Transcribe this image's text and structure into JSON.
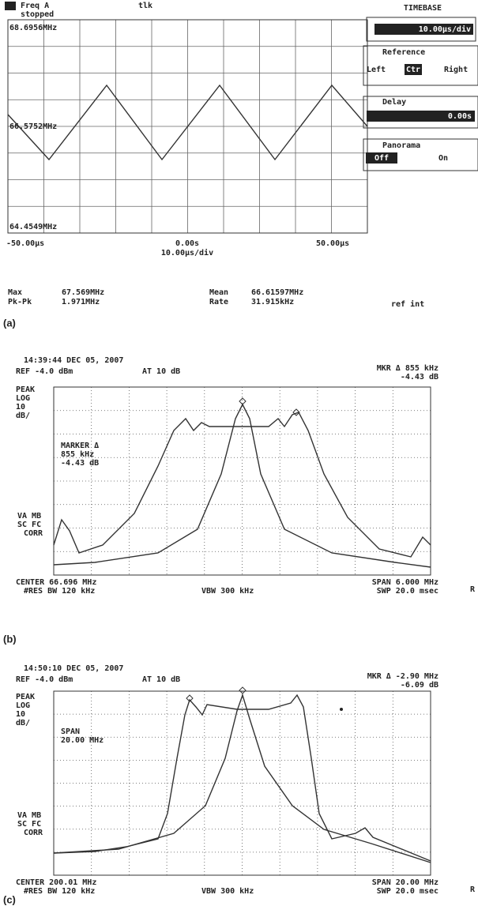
{
  "panel_a": {
    "header": {
      "mode": "Freq A",
      "status": "stopped",
      "tag": "tlk"
    },
    "timebase": {
      "title": "TIMEBASE",
      "value": "10.00µs/div"
    },
    "reference": {
      "title": "Reference",
      "left": "Left",
      "center": "Ctr",
      "right": "Right"
    },
    "delay": {
      "title": "Delay",
      "value": "0.00s"
    },
    "panorama": {
      "title": "Panorama",
      "off": "Off",
      "on": "On"
    },
    "y_labels": [
      "68.6956MHz",
      "66.5752MHz",
      "64.4549MHz"
    ],
    "x_labels": [
      "-50.00µs",
      "0.00s",
      "50.00µs"
    ],
    "x_scale": "10.00µs/div",
    "stats": {
      "max_label": "Max",
      "max": "67.569MHz",
      "pkpk_label": "Pk-Pk",
      "pkpk": "1.971MHz",
      "mean_label": "Mean",
      "mean": "66.61597MHz",
      "rate_label": "Rate",
      "rate": "31.915kHz",
      "ref": "ref int"
    },
    "caption": "(a)"
  },
  "panel_b": {
    "timestamp": "14:39:44 DEC 05, 2007",
    "ref": "REF -4.0 dBm",
    "atten": "AT 10 dB",
    "marker": "MKR Δ 855 kHz",
    "marker_db": "-4.43 dB",
    "scale": [
      "PEAK",
      "LOG",
      "10",
      "dB/"
    ],
    "note": [
      "MARKER Δ",
      "855 kHz",
      "-4.43 dB"
    ],
    "corr": [
      "VA MB",
      "SC FC",
      "CORR"
    ],
    "footer": {
      "center": "CENTER 66.696 MHz",
      "rbw": "#RES BW 120 kHz",
      "vbw": "VBW 300 kHz",
      "span": "SPAN 6.000 MHz",
      "sweep": "SWP 20.0 msec",
      "edge": "R"
    },
    "caption": "(b)"
  },
  "panel_c": {
    "timestamp": "14:50:10 DEC 05, 2007",
    "ref": "REF -4.0 dBm",
    "atten": "AT 10 dB",
    "marker": "MKR Δ -2.90 MHz",
    "marker_db": "-6.09 dB",
    "scale": [
      "PEAK",
      "LOG",
      "10",
      "dB/"
    ],
    "note": [
      "SPAN",
      "20.00 MHz"
    ],
    "corr": [
      "VA MB",
      "SC FC",
      "CORR"
    ],
    "footer": {
      "center": "CENTER 200.01 MHz",
      "rbw": "#RES BW 120 kHz",
      "vbw": "VBW 300 kHz",
      "span": "SPAN 20.00 MHz",
      "sweep": "SWP 20.0 msec",
      "edge": "R"
    },
    "caption": "(c)"
  }
}
